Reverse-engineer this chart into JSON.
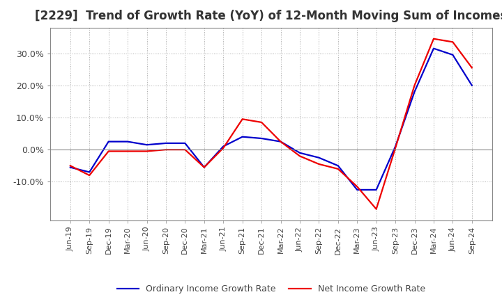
{
  "title": "[2229]  Trend of Growth Rate (YoY) of 12-Month Moving Sum of Incomes",
  "title_fontsize": 12,
  "title_color": "#333333",
  "background_color": "#ffffff",
  "plot_background_color": "#ffffff",
  "grid_color": "#aaaaaa",
  "x_labels": [
    "Jun-19",
    "Sep-19",
    "Dec-19",
    "Mar-20",
    "Jun-20",
    "Sep-20",
    "Dec-20",
    "Mar-21",
    "Jun-21",
    "Sep-21",
    "Dec-21",
    "Mar-22",
    "Jun-22",
    "Sep-22",
    "Dec-22",
    "Mar-23",
    "Jun-23",
    "Sep-23",
    "Dec-23",
    "Mar-24",
    "Jun-24",
    "Sep-24"
  ],
  "ordinary_income": [
    -5.5,
    -7.0,
    2.5,
    2.5,
    1.5,
    2.0,
    2.0,
    -5.5,
    1.0,
    4.0,
    3.5,
    2.5,
    -1.0,
    -2.5,
    -5.0,
    -12.5,
    -12.5,
    1.0,
    18.0,
    31.5,
    29.5,
    20.0
  ],
  "net_income": [
    -5.0,
    -8.0,
    -0.5,
    -0.5,
    -0.5,
    0.0,
    0.0,
    -5.5,
    0.5,
    9.5,
    8.5,
    2.5,
    -2.0,
    -4.5,
    -6.0,
    -11.5,
    -18.5,
    0.5,
    20.0,
    34.5,
    33.5,
    25.5
  ],
  "ordinary_color": "#0000cc",
  "net_color": "#ee0000",
  "line_width": 1.6,
  "ylim": [
    -22,
    38
  ],
  "yticks": [
    -10.0,
    0.0,
    10.0,
    20.0,
    30.0
  ],
  "legend_labels": [
    "Ordinary Income Growth Rate",
    "Net Income Growth Rate"
  ],
  "legend_loc": "lower center",
  "legend_ncol": 2
}
